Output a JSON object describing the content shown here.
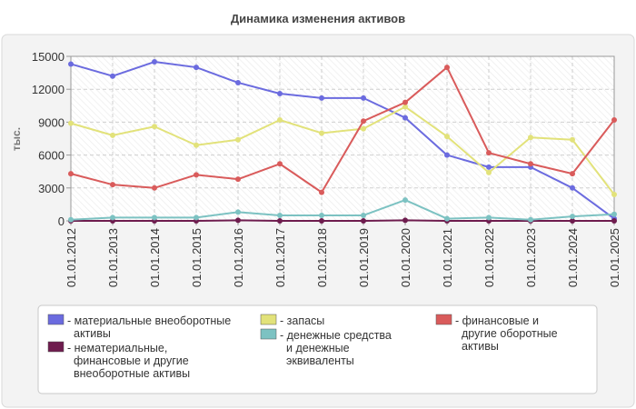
{
  "chart_data": {
    "type": "line",
    "title": "Динамика изменения активов",
    "ylabel": "тыс.",
    "xlabel": "",
    "ylim": [
      0,
      15000
    ],
    "yticks": [
      0,
      3000,
      6000,
      9000,
      12000,
      15000
    ],
    "grid": true,
    "legend_position": "bottom",
    "categories": [
      "01.01.2012",
      "01.01.2013",
      "01.01.2014",
      "01.01.2015",
      "01.01.2016",
      "01.01.2017",
      "01.01.2018",
      "01.01.2019",
      "01.01.2020",
      "01.01.2021",
      "01.01.2022",
      "01.01.2023",
      "01.01.2024",
      "01.01.2025"
    ],
    "series": [
      {
        "name": "- материальные внеоборотные активы",
        "color": "#6b6bdf",
        "values": [
          14300,
          13200,
          14500,
          14000,
          12600,
          11600,
          11200,
          11200,
          9400,
          6000,
          4900,
          4900,
          3000,
          200
        ]
      },
      {
        "name": "- нематериальные, финансовые и другие внеоборотные активы",
        "color": "#6e1c4e",
        "values": [
          0,
          0,
          0,
          0,
          50,
          0,
          0,
          0,
          50,
          0,
          0,
          0,
          0,
          0
        ]
      },
      {
        "name": "- запасы",
        "color": "#e2e27a",
        "values": [
          8900,
          7800,
          8600,
          6900,
          7400,
          9200,
          8000,
          8400,
          10400,
          7700,
          4400,
          7600,
          7400,
          2400
        ]
      },
      {
        "name": "- денежные средства и денежные эквиваленты",
        "color": "#7cc2c2",
        "values": [
          100,
          300,
          300,
          300,
          800,
          500,
          500,
          500,
          1900,
          200,
          300,
          100,
          400,
          600
        ]
      },
      {
        "name": "- финансовые и другие оборотные активы",
        "color": "#d95b5b",
        "values": [
          4300,
          3300,
          3000,
          4200,
          3800,
          5200,
          2600,
          9100,
          10800,
          14000,
          6200,
          5200,
          4300,
          9200
        ]
      }
    ]
  }
}
